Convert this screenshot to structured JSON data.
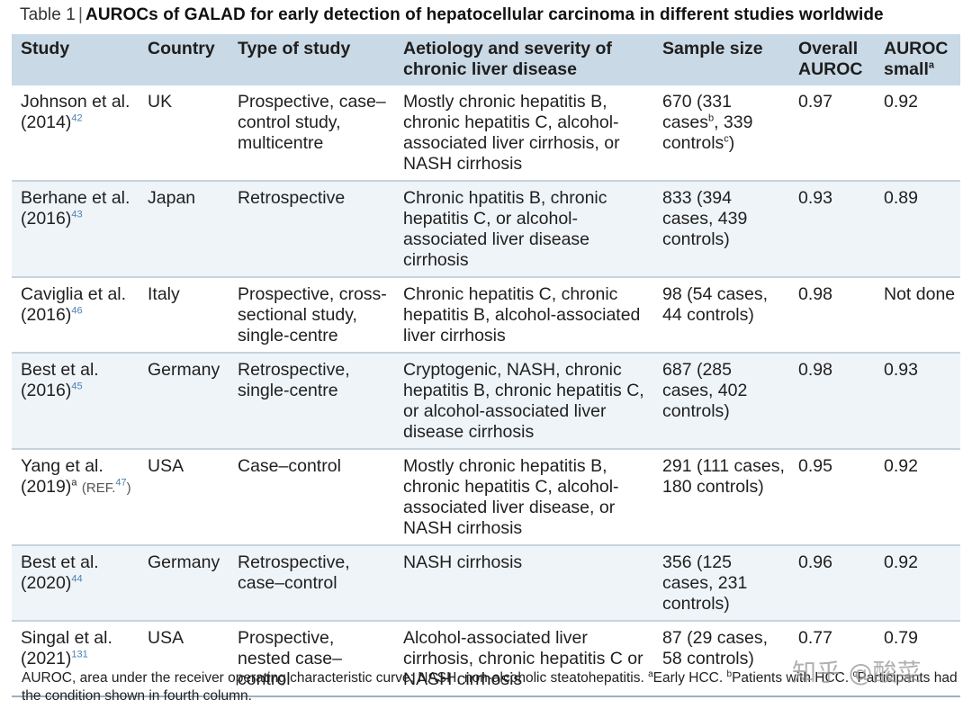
{
  "caption": {
    "table_label": "Table 1",
    "separator": "|",
    "title": "AUROCs of GALAD for early detection of hepatocellular carcinoma in different studies worldwide"
  },
  "headers": {
    "study": "Study",
    "country": "Country",
    "type": "Type of study",
    "aetiology": "Aetiology and severity of chronic liver disease",
    "sample": "Sample size",
    "overall": "Overall AUROC",
    "small": "AUROC small",
    "small_sup": "a"
  },
  "rows": [
    {
      "author": "Johnson et al.",
      "year": "(2014)",
      "ref": "42",
      "extra_sup": "",
      "extra_ref": "",
      "country": "UK",
      "type": "Prospective, case–control study, multicentre",
      "aetiology": "Mostly chronic hepatitis B, chronic hepatitis C, alcohol-associated liver cirrhosis, or NASH cirrhosis",
      "sample_a": "670 (331 cases",
      "sample_sup1": "b",
      "sample_b": ", 339 controls",
      "sample_sup2": "c",
      "sample_c": ")",
      "overall": "0.97",
      "small": "0.92"
    },
    {
      "author": "Berhane et al.",
      "year": "(2016)",
      "ref": "43",
      "country": "Japan",
      "type": "Retrospective",
      "aetiology": "Chronic hpatitis B, chronic hepatitis C, or alcohol-associated liver disease cirrhosis",
      "sample": "833 (394 cases, 439 controls)",
      "overall": "0.93",
      "small": "0.89"
    },
    {
      "author": "Caviglia et al.",
      "year": "(2016)",
      "ref": "46",
      "country": "Italy",
      "type": "Prospective, cross-sectional study, single-centre",
      "aetiology": "Chronic hepatitis C, chronic hepatitis B, alcohol-associated liver cirrhosis",
      "sample": "98 (54 cases, 44 controls)",
      "overall": "0.98",
      "small": "Not done"
    },
    {
      "author": "Best et al.",
      "year": "(2016)",
      "ref": "45",
      "country": "Germany",
      "type": "Retrospective, single-centre",
      "aetiology": "Cryptogenic, NASH, chronic hepatitis B, chronic hepatitis C, or alcohol-associated liver disease cirrhosis",
      "sample": "687 (285 cases, 402 controls)",
      "overall": "0.98",
      "small": "0.93"
    },
    {
      "author": "Yang et al.",
      "year": "(2019)",
      "ref": "",
      "year_sup": "a",
      "ref_label": "(REF.",
      "ref_num": "47",
      "ref_close": ")",
      "country": "USA",
      "type": "Case–control",
      "aetiology": "Mostly chronic hepatitis B, chronic hepatitis C, alcohol-associated liver disease, or NASH cirrhosis",
      "sample": "291 (111 cases, 180 controls)",
      "overall": "0.95",
      "small": "0.92"
    },
    {
      "author": "Best et al.",
      "year": "(2020)",
      "ref": "44",
      "country": "Germany",
      "type": "Retrospective, case–control",
      "aetiology": "NASH cirrhosis",
      "sample": "356 (125 cases, 231 controls)",
      "overall": "0.96",
      "small": "0.92"
    },
    {
      "author": "Singal et al.",
      "year": "(2021)",
      "ref": "131",
      "country": "USA",
      "type": "Prospective, nested case–control",
      "aetiology": "Alcohol-associated liver cirrhosis, chronic hepatitis C or NASH cirrhosis",
      "sample": "87 (29 cases, 58 controls)",
      "overall": "0.77",
      "small": "0.79"
    }
  ],
  "footnote": {
    "line1_a": "AUROC, area under the receiver operating characteristic curve; NASH, non-alcoholic steatohepatitis. ",
    "sup_a": "a",
    "early": "Early HCC. ",
    "sup_b": "b",
    "patients": "Patients with HCC. ",
    "sup_c": "c",
    "participants": "Participants had the condition shown in fourth column."
  },
  "watermark": "知乎 @酸菜"
}
